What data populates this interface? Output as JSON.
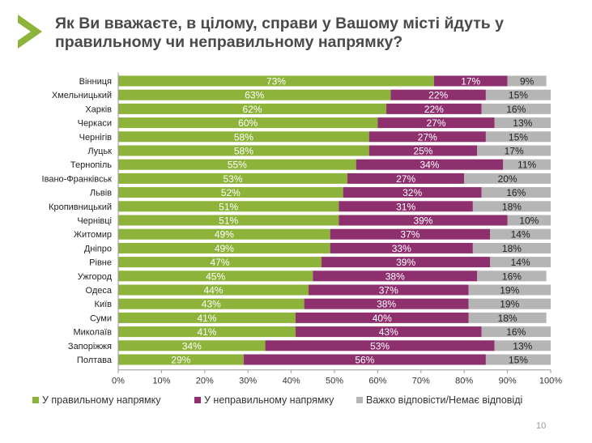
{
  "title": "Як Ви вважаєте, в цілому, справи у Вашому місті йдуть у правильному чи неправильному напрямку?",
  "page_number": "10",
  "colors": {
    "right": "#8db33a",
    "wrong": "#8e2f6e",
    "hard": "#b5b5b5"
  },
  "chart_data": {
    "type": "bar",
    "orientation": "horizontal-stacked-100",
    "title": "Як Ви вважаєте, в цілому, справи у Вашому місті йдуть у правильному чи неправильному напрямку?",
    "categories": [
      "Вінниця",
      "Хмельницький",
      "Харків",
      "Черкаси",
      "Чернігів",
      "Луцьк",
      "Тернопіль",
      "Івано-Франківськ",
      "Львів",
      "Кропивницький",
      "Чернівці",
      "Житомир",
      "Дніпро",
      "Рівне",
      "Ужгород",
      "Одеса",
      "Київ",
      "Суми",
      "Миколаїв",
      "Запоріжжя",
      "Полтава"
    ],
    "series": [
      {
        "name": "У правильному напрямку",
        "values": [
          73,
          63,
          62,
          60,
          58,
          58,
          55,
          53,
          52,
          51,
          51,
          49,
          49,
          47,
          45,
          44,
          43,
          41,
          41,
          34,
          29
        ]
      },
      {
        "name": "У неправильному напрямку",
        "values": [
          17,
          22,
          22,
          27,
          27,
          25,
          34,
          27,
          32,
          31,
          39,
          37,
          33,
          39,
          38,
          37,
          38,
          40,
          43,
          53,
          56
        ]
      },
      {
        "name": "Важко відповісти/Немає відповіді",
        "values": [
          9,
          15,
          16,
          13,
          15,
          17,
          11,
          20,
          16,
          18,
          10,
          14,
          18,
          14,
          16,
          19,
          19,
          18,
          16,
          13,
          15
        ]
      }
    ],
    "xticks": [
      "0%",
      "10%",
      "20%",
      "30%",
      "40%",
      "50%",
      "60%",
      "70%",
      "80%",
      "90%",
      "100%"
    ],
    "xlim": [
      0,
      100
    ],
    "legend": "bottom",
    "grid": false
  }
}
